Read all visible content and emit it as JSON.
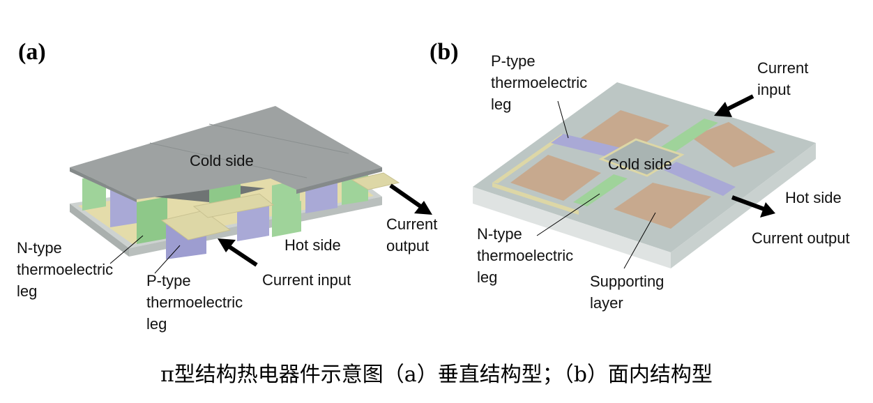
{
  "panel_a": {
    "letter": "(a)",
    "labels": {
      "cold_side": "Cold side",
      "hot_side": "Hot side",
      "current_output": [
        "Current",
        "output"
      ],
      "current_input": "Current input",
      "n_type_leg": [
        "N-type",
        "thermoelectric",
        "leg"
      ],
      "p_type_leg": [
        "P-type",
        "thermoelectric",
        "leg"
      ]
    }
  },
  "panel_b": {
    "letter": "(b)",
    "labels": {
      "p_type_leg": [
        "P-type",
        "thermoelectric",
        "leg"
      ],
      "current_input": [
        "Current",
        "input"
      ],
      "cold_side": "Cold side",
      "hot_side": "Hot side",
      "current_output": "Current output",
      "n_type_leg": [
        "N-type",
        "thermoelectric",
        "leg"
      ],
      "supporting_layer": [
        "Supporting",
        "layer"
      ]
    }
  },
  "caption": "π型结构热电器件示意图（a）垂直结构型；（b）面内结构型",
  "colors": {
    "n_type": "#9fd39a",
    "p_type": "#a9a9d6",
    "electrode": "#ddd7a6",
    "cold_plate": "#9ea2a2",
    "substrate": "#bcc6c4",
    "supporting_pad": "#c7a98e",
    "arrow": "#000000"
  }
}
